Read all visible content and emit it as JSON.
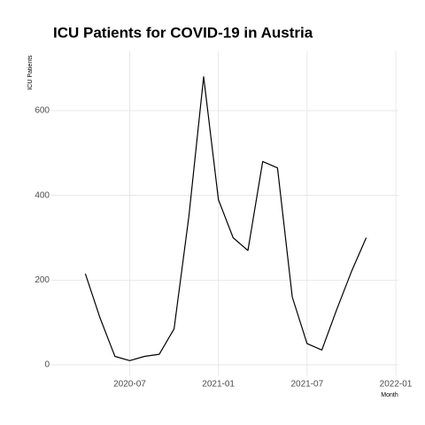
{
  "chart_data": {
    "type": "line",
    "title": "ICU Patients for COVID-19 in Austria",
    "xlabel": "Month",
    "ylabel": "ICU Patients",
    "x": [
      "2020-04",
      "2020-05",
      "2020-06",
      "2020-07",
      "2020-08",
      "2020-09",
      "2020-10",
      "2020-11",
      "2020-12",
      "2021-01",
      "2021-02",
      "2021-03",
      "2021-04",
      "2021-05",
      "2021-06",
      "2021-07",
      "2021-08",
      "2021-09",
      "2021-10",
      "2021-11"
    ],
    "series": [
      {
        "name": "ICU Patients",
        "color": "#000000",
        "values": [
          215,
          110,
          20,
          10,
          20,
          25,
          85,
          350,
          680,
          390,
          300,
          270,
          480,
          465,
          160,
          50,
          35,
          130,
          220,
          300
        ]
      }
    ],
    "xlim": [
      "2020-02",
      "2022-01"
    ],
    "xticks": [
      "2020-07",
      "2021-01",
      "2021-07",
      "2022-01"
    ],
    "ylim": [
      -25,
      740
    ],
    "yticks": [
      0,
      200,
      400,
      600
    ],
    "grid": true
  }
}
